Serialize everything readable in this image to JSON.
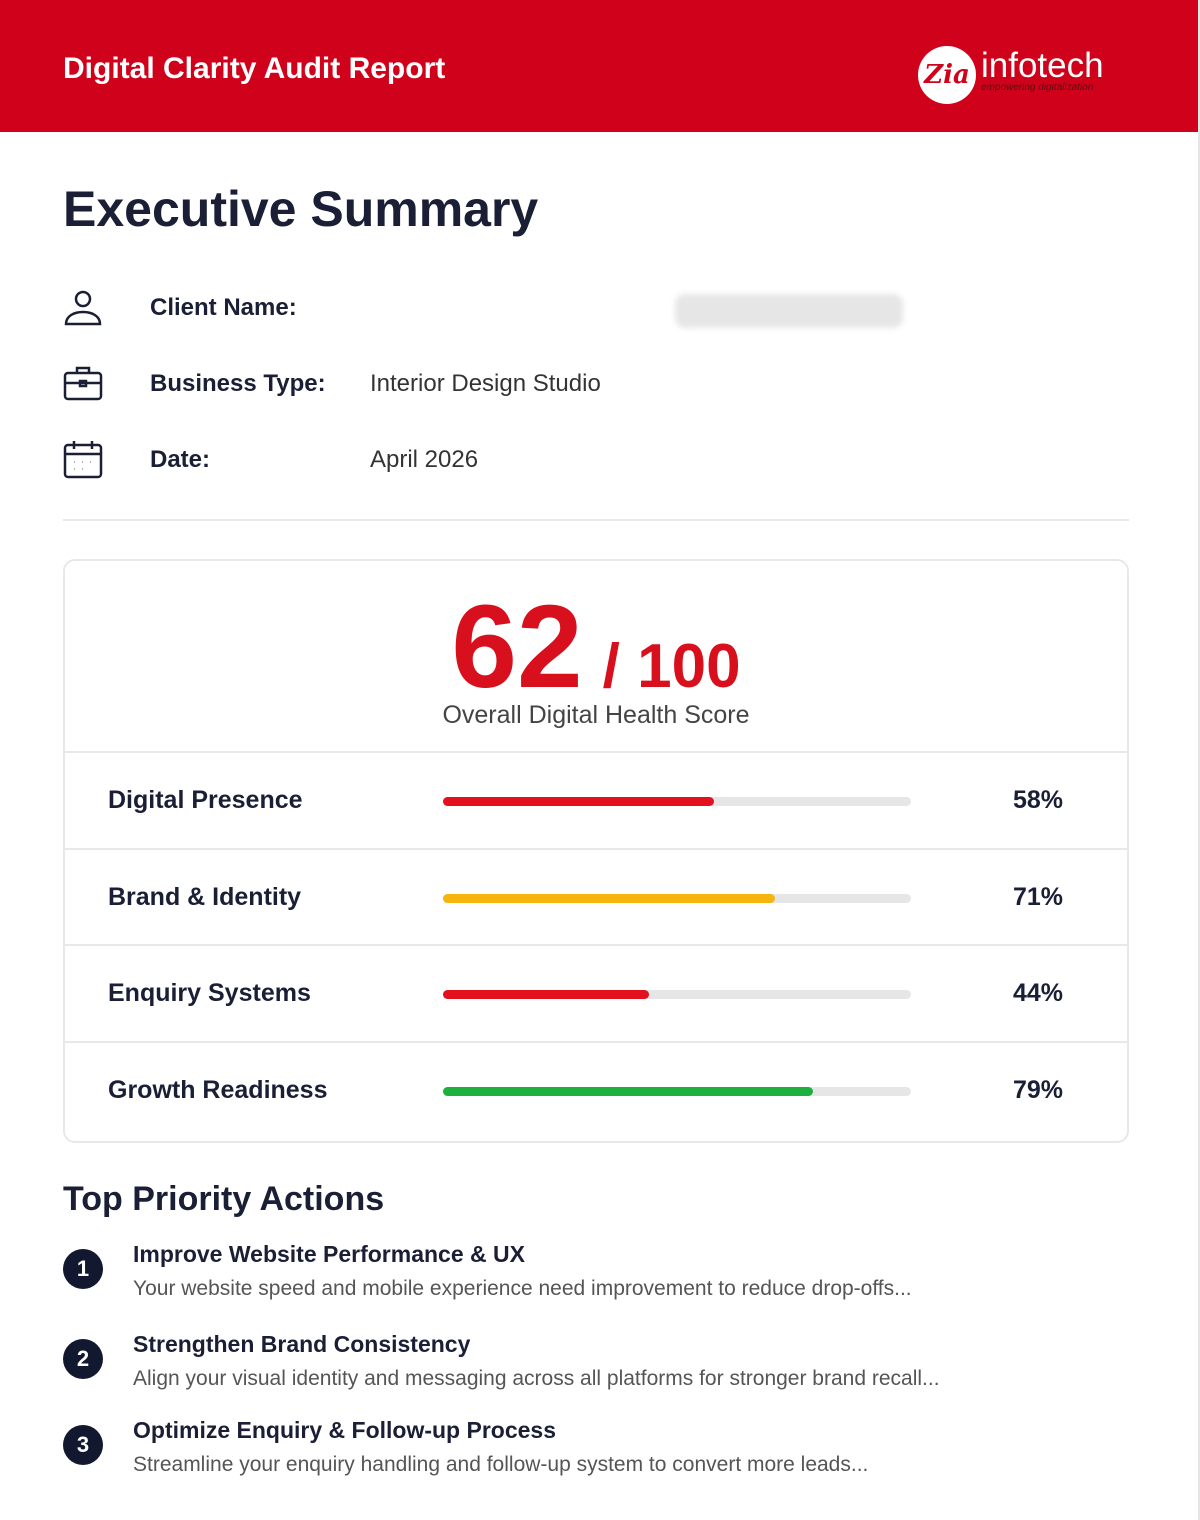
{
  "header": {
    "title": "Digital Clarity Audit Report",
    "logo": {
      "mark": "Zia",
      "name": "infotech",
      "tagline": "empowering digitalization"
    }
  },
  "page_title": "Executive Summary",
  "info": [
    {
      "icon": "user-icon",
      "label": "Client Name:",
      "value": ""
    },
    {
      "icon": "briefcase-icon",
      "label": "Business Type:",
      "value": "Interior Design Studio"
    },
    {
      "icon": "calendar-icon",
      "label": "Date:",
      "value": "April 2026"
    }
  ],
  "score": {
    "value": "62",
    "max": "/ 100",
    "label": "Overall Digital Health Score"
  },
  "metrics": [
    {
      "label": "Digital Presence",
      "percent": 58,
      "display": "58%",
      "color": "#e3101f"
    },
    {
      "label": "Brand & Identity",
      "percent": 71,
      "display": "71%",
      "color": "#f5b40e"
    },
    {
      "label": "Enquiry Systems",
      "percent": 44,
      "display": "44%",
      "color": "#e3101f"
    },
    {
      "label": "Growth Readiness",
      "percent": 79,
      "display": "79%",
      "color": "#1db03f"
    }
  ],
  "actions_title": "Top Priority Actions",
  "actions": [
    {
      "num": "1",
      "title": "Improve Website Performance & UX",
      "desc": "Your website speed and mobile experience need improvement to reduce drop-offs..."
    },
    {
      "num": "2",
      "title": "Strengthen Brand Consistency",
      "desc": "Align your visual identity and messaging across all platforms for stronger brand recall..."
    },
    {
      "num": "3",
      "title": "Optimize Enquiry & Follow-up Process",
      "desc": "Streamline your enquiry handling and follow-up system to convert more leads..."
    }
  ]
}
